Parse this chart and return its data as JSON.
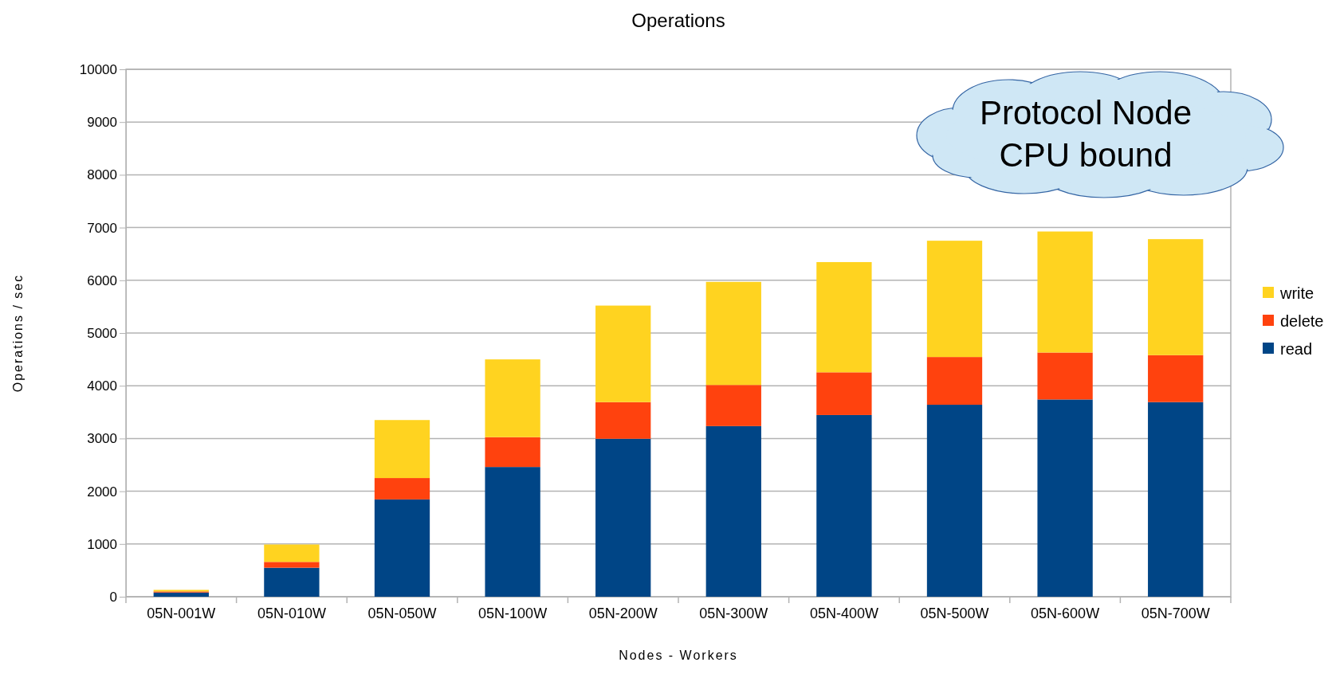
{
  "chart_data": {
    "type": "bar",
    "title": "Operations",
    "xlabel": "Nodes - Workers",
    "ylabel": "Operations / sec",
    "categories": [
      "05N-001W",
      "05N-010W",
      "05N-050W",
      "05N-100W",
      "05N-200W",
      "05N-300W",
      "05N-400W",
      "05N-500W",
      "05N-600W",
      "05N-700W"
    ],
    "stacked": true,
    "series": [
      {
        "name": "read",
        "color": "#004586",
        "values": [
          80,
          550,
          1845,
          2460,
          2995,
          3235,
          3445,
          3640,
          3740,
          3690
        ]
      },
      {
        "name": "delete",
        "color": "#ff420e",
        "values": [
          20,
          110,
          405,
          565,
          695,
          780,
          810,
          905,
          890,
          890
        ]
      },
      {
        "name": "write",
        "color": "#ffd320",
        "values": [
          30,
          330,
          1100,
          1475,
          1830,
          1955,
          2090,
          2205,
          2295,
          2200
        ]
      }
    ],
    "ylim": [
      0,
      10000
    ],
    "yticks": [
      0,
      1000,
      2000,
      3000,
      4000,
      5000,
      6000,
      7000,
      8000,
      9000,
      10000
    ],
    "grid": "y",
    "legend": "right",
    "annotations": [
      "Protocol Node\nCPU bound"
    ]
  }
}
